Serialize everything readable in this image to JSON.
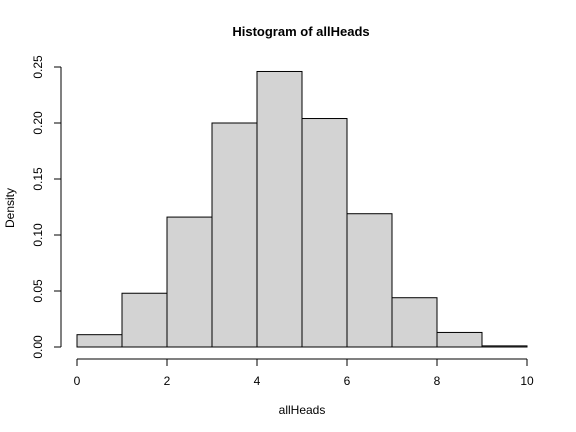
{
  "chart_data": {
    "type": "bar",
    "title": "Histogram of allHeads",
    "xlabel": "allHeads",
    "ylabel": "Density",
    "bins": [
      {
        "from": 0,
        "to": 1,
        "density": 0.011
      },
      {
        "from": 1,
        "to": 2,
        "density": 0.048
      },
      {
        "from": 2,
        "to": 3,
        "density": 0.116
      },
      {
        "from": 3,
        "to": 4,
        "density": 0.2
      },
      {
        "from": 4,
        "to": 5,
        "density": 0.246
      },
      {
        "from": 5,
        "to": 6,
        "density": 0.204
      },
      {
        "from": 6,
        "to": 7,
        "density": 0.119
      },
      {
        "from": 7,
        "to": 8,
        "density": 0.044
      },
      {
        "from": 8,
        "to": 9,
        "density": 0.013
      },
      {
        "from": 9,
        "to": 10,
        "density": 0.001
      }
    ],
    "xlim": [
      0,
      10
    ],
    "ylim": [
      0,
      0.25
    ],
    "xticks": [
      "0",
      "2",
      "4",
      "6",
      "8",
      "10"
    ],
    "yticks": [
      "0.00",
      "0.05",
      "0.10",
      "0.15",
      "0.20",
      "0.25"
    ],
    "grid": false,
    "legend": "none",
    "colors": {
      "bar_fill": "#d3d3d3",
      "bar_stroke": "#000000"
    }
  }
}
